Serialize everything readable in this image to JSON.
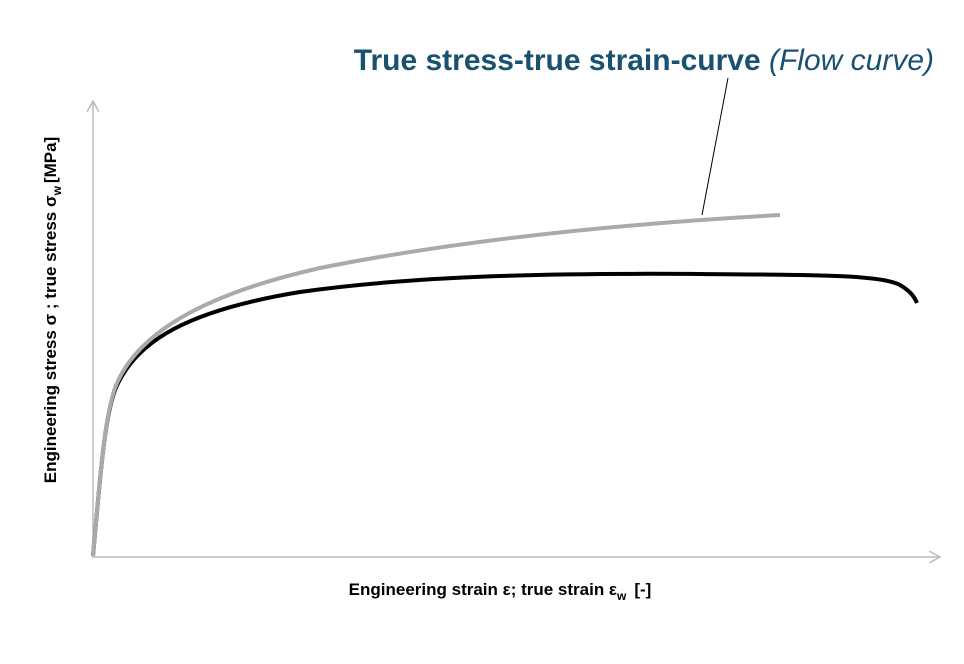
{
  "title": {
    "main": "True stress-true strain-curve",
    "note": "(Flow curve)"
  },
  "x_axis": {
    "label": "Engineering strain ε; true strain ε",
    "subscript": "w",
    "unit": "[-]"
  },
  "y_axis": {
    "label": "Engineering stress σ ; true stress σ",
    "subscript": "w",
    "unit": "[MPa]"
  }
}
